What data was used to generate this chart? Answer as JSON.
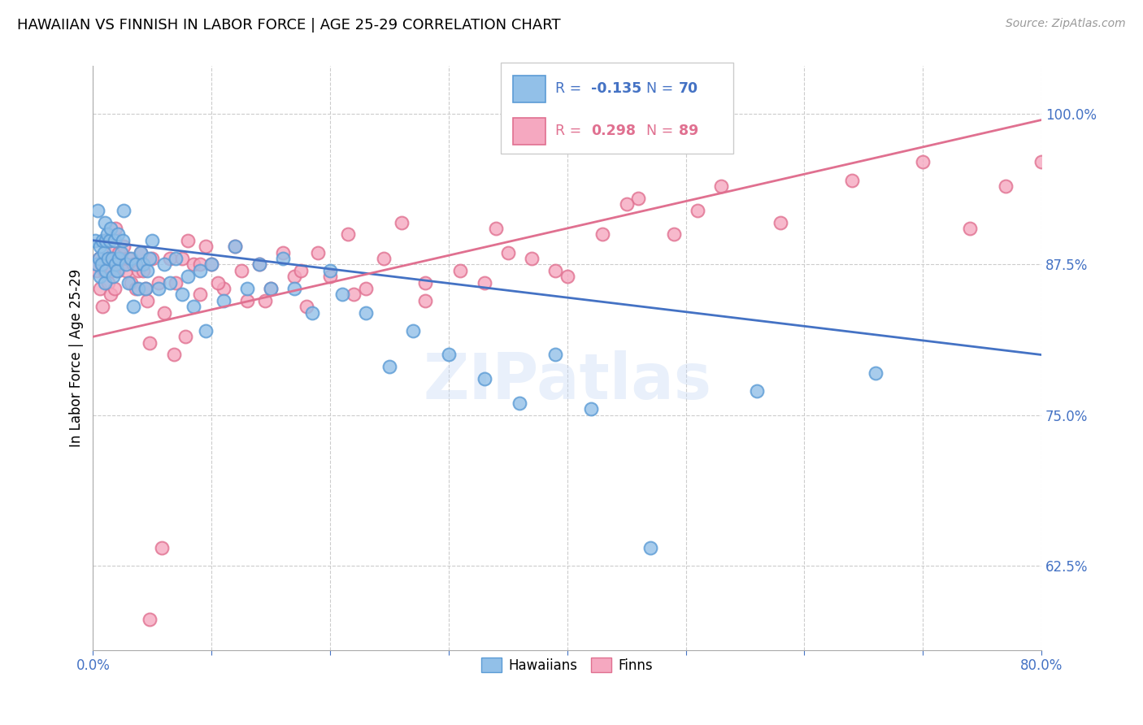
{
  "title": "HAWAIIAN VS FINNISH IN LABOR FORCE | AGE 25-29 CORRELATION CHART",
  "source": "Source: ZipAtlas.com",
  "ylabel": "In Labor Force | Age 25-29",
  "xlim": [
    0.0,
    0.8
  ],
  "ylim": [
    0.555,
    1.04
  ],
  "xticks": [
    0.0,
    0.1,
    0.2,
    0.3,
    0.4,
    0.5,
    0.6,
    0.7,
    0.8
  ],
  "xticklabels": [
    "0.0%",
    "",
    "",
    "",
    "",
    "",
    "",
    "",
    "80.0%"
  ],
  "yticks": [
    0.625,
    0.75,
    0.875,
    1.0
  ],
  "yticklabels": [
    "62.5%",
    "75.0%",
    "87.5%",
    "100.0%"
  ],
  "ytick_color": "#4472c4",
  "xtick_color": "#4472c4",
  "hawaiian_color": "#92C0E8",
  "finn_color": "#F5A8C0",
  "hawaiian_edge_color": "#5B9BD5",
  "finn_edge_color": "#E07090",
  "hawaiian_line_color": "#4472c4",
  "finn_line_color": "#E07090",
  "legend_r_hawaiian": "R = -0.135",
  "legend_n_hawaiian": "N = 70",
  "legend_r_finn": "R =  0.298",
  "legend_n_finn": "N = 89",
  "watermark": "ZIPatlas",
  "hawaiian_data_x": [
    0.002,
    0.003,
    0.004,
    0.005,
    0.006,
    0.006,
    0.007,
    0.008,
    0.009,
    0.01,
    0.01,
    0.011,
    0.011,
    0.012,
    0.013,
    0.014,
    0.015,
    0.016,
    0.017,
    0.018,
    0.019,
    0.02,
    0.021,
    0.022,
    0.024,
    0.025,
    0.026,
    0.028,
    0.03,
    0.032,
    0.034,
    0.036,
    0.038,
    0.04,
    0.042,
    0.044,
    0.046,
    0.048,
    0.05,
    0.055,
    0.06,
    0.065,
    0.07,
    0.075,
    0.08,
    0.085,
    0.09,
    0.095,
    0.1,
    0.11,
    0.12,
    0.13,
    0.14,
    0.15,
    0.16,
    0.17,
    0.185,
    0.2,
    0.21,
    0.23,
    0.25,
    0.27,
    0.3,
    0.33,
    0.36,
    0.39,
    0.42,
    0.47,
    0.56,
    0.66
  ],
  "hawaiian_data_y": [
    0.895,
    0.875,
    0.92,
    0.88,
    0.89,
    0.865,
    0.875,
    0.895,
    0.885,
    0.91,
    0.86,
    0.895,
    0.87,
    0.9,
    0.88,
    0.895,
    0.905,
    0.88,
    0.865,
    0.895,
    0.875,
    0.87,
    0.9,
    0.88,
    0.885,
    0.895,
    0.92,
    0.875,
    0.86,
    0.88,
    0.84,
    0.875,
    0.855,
    0.885,
    0.875,
    0.855,
    0.87,
    0.88,
    0.895,
    0.855,
    0.875,
    0.86,
    0.88,
    0.85,
    0.865,
    0.84,
    0.87,
    0.82,
    0.875,
    0.845,
    0.89,
    0.855,
    0.875,
    0.855,
    0.88,
    0.855,
    0.835,
    0.87,
    0.85,
    0.835,
    0.79,
    0.82,
    0.8,
    0.78,
    0.76,
    0.8,
    0.755,
    0.64,
    0.77,
    0.785
  ],
  "finn_data_x": [
    0.003,
    0.004,
    0.005,
    0.006,
    0.007,
    0.008,
    0.009,
    0.01,
    0.011,
    0.012,
    0.013,
    0.014,
    0.015,
    0.016,
    0.017,
    0.018,
    0.019,
    0.02,
    0.021,
    0.022,
    0.024,
    0.026,
    0.028,
    0.03,
    0.032,
    0.034,
    0.036,
    0.038,
    0.04,
    0.042,
    0.044,
    0.046,
    0.048,
    0.05,
    0.055,
    0.06,
    0.065,
    0.07,
    0.075,
    0.08,
    0.085,
    0.09,
    0.095,
    0.1,
    0.11,
    0.12,
    0.13,
    0.14,
    0.15,
    0.16,
    0.17,
    0.18,
    0.19,
    0.2,
    0.215,
    0.23,
    0.245,
    0.26,
    0.28,
    0.31,
    0.34,
    0.37,
    0.4,
    0.43,
    0.46,
    0.49,
    0.53,
    0.58,
    0.64,
    0.7,
    0.74,
    0.77,
    0.8,
    0.39,
    0.28,
    0.33,
    0.45,
    0.51,
    0.35,
    0.22,
    0.175,
    0.145,
    0.125,
    0.105,
    0.09,
    0.078,
    0.068,
    0.058,
    0.048
  ],
  "finn_data_y": [
    0.87,
    0.875,
    0.88,
    0.855,
    0.875,
    0.84,
    0.87,
    0.895,
    0.875,
    0.895,
    0.86,
    0.88,
    0.85,
    0.87,
    0.885,
    0.855,
    0.905,
    0.88,
    0.87,
    0.885,
    0.875,
    0.89,
    0.87,
    0.88,
    0.86,
    0.875,
    0.855,
    0.87,
    0.885,
    0.87,
    0.855,
    0.845,
    0.81,
    0.88,
    0.86,
    0.835,
    0.88,
    0.86,
    0.88,
    0.895,
    0.875,
    0.85,
    0.89,
    0.875,
    0.855,
    0.89,
    0.845,
    0.875,
    0.855,
    0.885,
    0.865,
    0.84,
    0.885,
    0.865,
    0.9,
    0.855,
    0.88,
    0.91,
    0.86,
    0.87,
    0.905,
    0.88,
    0.865,
    0.9,
    0.93,
    0.9,
    0.94,
    0.91,
    0.945,
    0.96,
    0.905,
    0.94,
    0.96,
    0.87,
    0.845,
    0.86,
    0.925,
    0.92,
    0.885,
    0.85,
    0.87,
    0.845,
    0.87,
    0.86,
    0.875,
    0.815,
    0.8,
    0.64,
    0.58
  ]
}
